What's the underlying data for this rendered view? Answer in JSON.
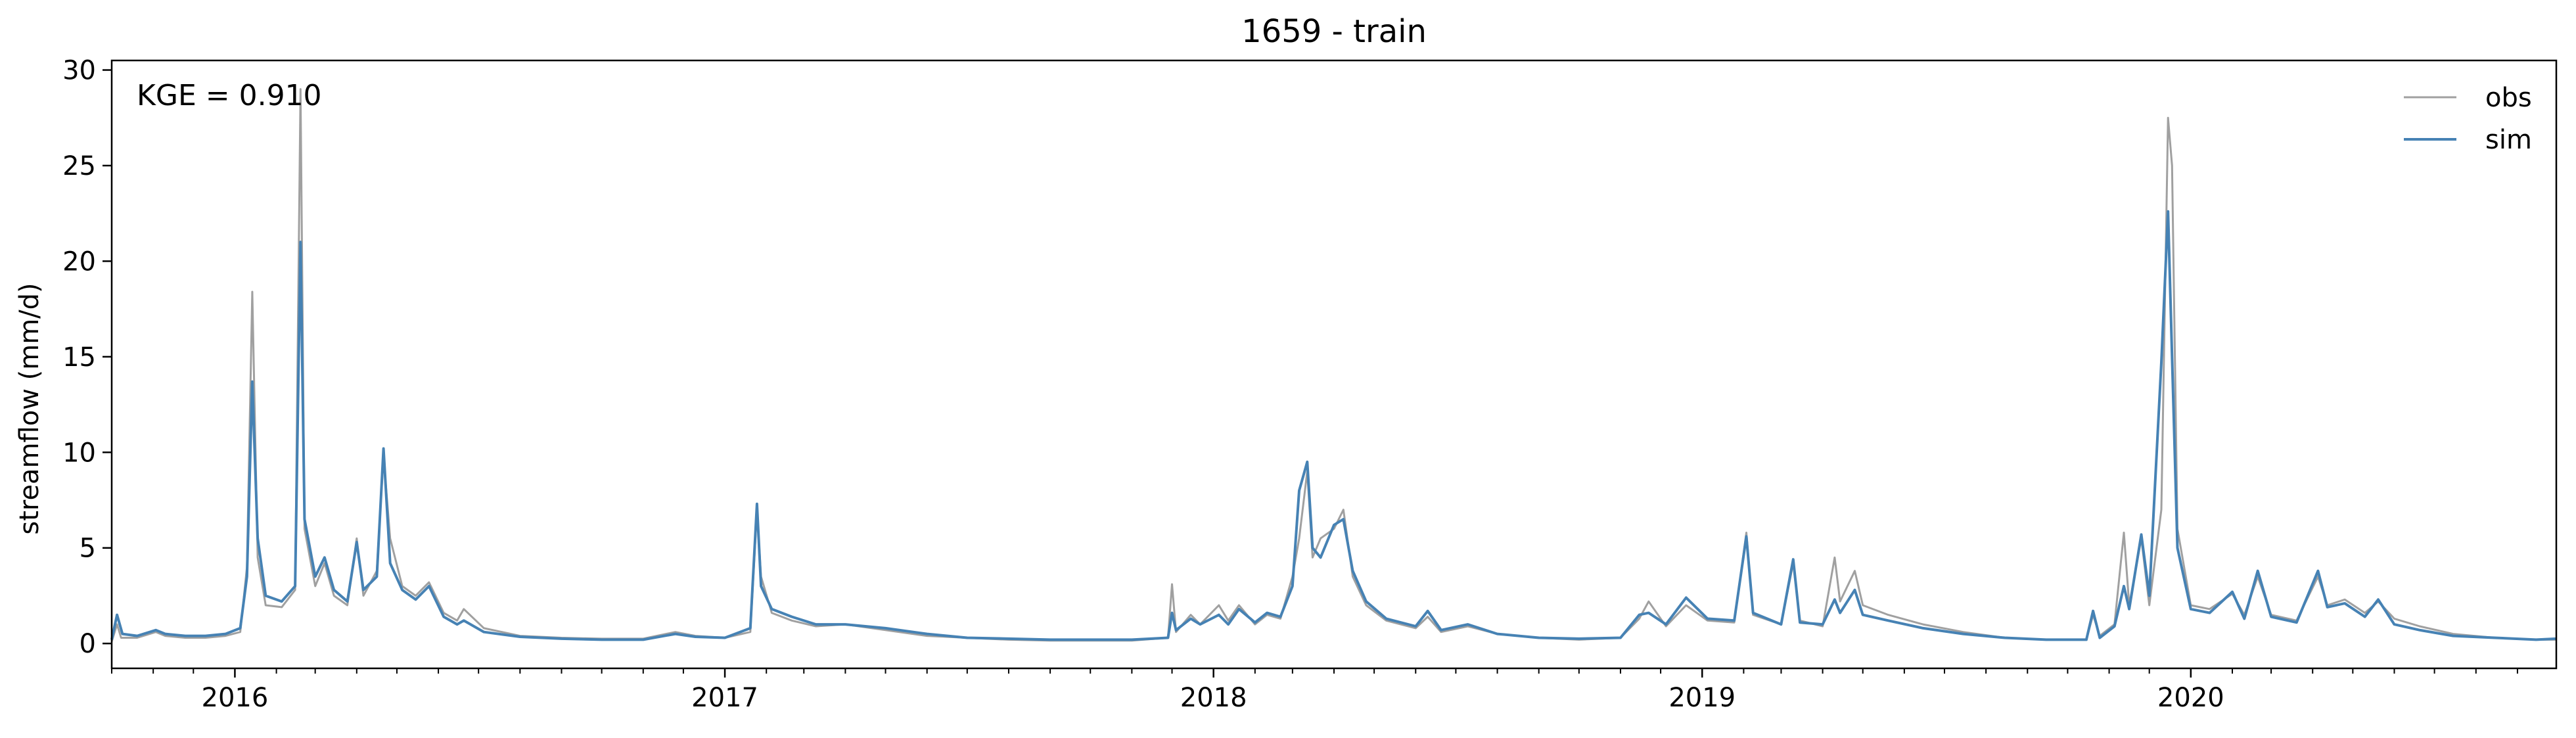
{
  "chart_data": {
    "type": "line",
    "title": "1659 - train",
    "xlabel": "",
    "ylabel": "streamflow (mm/d)",
    "annotation": "KGE = 0.910",
    "x_range": [
      "2015-10-01",
      "2020-09-30"
    ],
    "ylim": [
      -1.3,
      30.5
    ],
    "y_ticks": [
      0,
      5,
      10,
      15,
      20,
      25,
      30
    ],
    "y_tick_labels": [
      "0",
      "5",
      "10",
      "15",
      "20",
      "25",
      "30"
    ],
    "x_ticks": [
      "2016-01-01",
      "2017-01-01",
      "2018-01-01",
      "2019-01-01",
      "2020-01-01"
    ],
    "x_tick_labels": [
      "2016",
      "2017",
      "2018",
      "2019",
      "2020"
    ],
    "grid": false,
    "legend_position": "top-right",
    "series": [
      {
        "name": "obs",
        "color": "#a0a0a0",
        "points": [
          [
            "2015-10-01",
            0.1
          ],
          [
            "2015-10-05",
            1.0
          ],
          [
            "2015-10-08",
            0.3
          ],
          [
            "2015-10-20",
            0.3
          ],
          [
            "2015-11-03",
            0.6
          ],
          [
            "2015-11-10",
            0.4
          ],
          [
            "2015-11-25",
            0.3
          ],
          [
            "2015-12-10",
            0.3
          ],
          [
            "2015-12-25",
            0.4
          ],
          [
            "2016-01-05",
            0.6
          ],
          [
            "2016-01-10",
            4.0
          ],
          [
            "2016-01-14",
            18.4
          ],
          [
            "2016-01-18",
            4.5
          ],
          [
            "2016-01-24",
            2.0
          ],
          [
            "2016-02-05",
            1.9
          ],
          [
            "2016-02-15",
            2.8
          ],
          [
            "2016-02-19",
            29.0
          ],
          [
            "2016-02-22",
            6.0
          ],
          [
            "2016-03-01",
            3.0
          ],
          [
            "2016-03-08",
            4.2
          ],
          [
            "2016-03-15",
            2.5
          ],
          [
            "2016-03-25",
            2.0
          ],
          [
            "2016-04-01",
            5.5
          ],
          [
            "2016-04-06",
            2.5
          ],
          [
            "2016-04-16",
            3.8
          ],
          [
            "2016-04-21",
            9.8
          ],
          [
            "2016-04-26",
            5.5
          ],
          [
            "2016-05-05",
            3.0
          ],
          [
            "2016-05-15",
            2.5
          ],
          [
            "2016-05-25",
            3.2
          ],
          [
            "2016-06-05",
            1.6
          ],
          [
            "2016-06-15",
            1.2
          ],
          [
            "2016-06-20",
            1.8
          ],
          [
            "2016-07-05",
            0.8
          ],
          [
            "2016-08-01",
            0.4
          ],
          [
            "2016-09-01",
            0.3
          ],
          [
            "2016-10-01",
            0.25
          ],
          [
            "2016-11-01",
            0.25
          ],
          [
            "2016-11-25",
            0.6
          ],
          [
            "2016-12-10",
            0.4
          ],
          [
            "2017-01-01",
            0.3
          ],
          [
            "2017-01-20",
            0.6
          ],
          [
            "2017-01-25",
            7.0
          ],
          [
            "2017-01-28",
            3.5
          ],
          [
            "2017-02-05",
            1.6
          ],
          [
            "2017-02-20",
            1.2
          ],
          [
            "2017-03-10",
            0.9
          ],
          [
            "2017-04-01",
            1.0
          ],
          [
            "2017-05-01",
            0.7
          ],
          [
            "2017-06-01",
            0.4
          ],
          [
            "2017-07-01",
            0.3
          ],
          [
            "2017-08-01",
            0.2
          ],
          [
            "2017-09-01",
            0.15
          ],
          [
            "2017-10-01",
            0.15
          ],
          [
            "2017-11-01",
            0.15
          ],
          [
            "2017-11-28",
            0.3
          ],
          [
            "2017-12-01",
            3.1
          ],
          [
            "2017-12-04",
            0.6
          ],
          [
            "2017-12-15",
            1.5
          ],
          [
            "2017-12-22",
            1.0
          ],
          [
            "2018-01-05",
            2.0
          ],
          [
            "2018-01-12",
            1.2
          ],
          [
            "2018-01-20",
            2.0
          ],
          [
            "2018-02-01",
            1.0
          ],
          [
            "2018-02-10",
            1.5
          ],
          [
            "2018-02-20",
            1.3
          ],
          [
            "2018-03-01",
            3.5
          ],
          [
            "2018-03-06",
            5.5
          ],
          [
            "2018-03-12",
            9.0
          ],
          [
            "2018-03-16",
            4.5
          ],
          [
            "2018-03-22",
            5.5
          ],
          [
            "2018-04-01",
            6.0
          ],
          [
            "2018-04-08",
            7.0
          ],
          [
            "2018-04-15",
            3.5
          ],
          [
            "2018-04-25",
            2.0
          ],
          [
            "2018-05-10",
            1.2
          ],
          [
            "2018-06-01",
            0.8
          ],
          [
            "2018-06-10",
            1.4
          ],
          [
            "2018-06-20",
            0.6
          ],
          [
            "2018-07-10",
            0.9
          ],
          [
            "2018-08-01",
            0.5
          ],
          [
            "2018-09-01",
            0.3
          ],
          [
            "2018-10-01",
            0.2
          ],
          [
            "2018-11-01",
            0.3
          ],
          [
            "2018-11-15",
            1.3
          ],
          [
            "2018-11-22",
            2.2
          ],
          [
            "2018-12-05",
            0.9
          ],
          [
            "2018-12-20",
            2.0
          ],
          [
            "2019-01-05",
            1.2
          ],
          [
            "2019-01-25",
            1.1
          ],
          [
            "2019-02-03",
            5.8
          ],
          [
            "2019-02-08",
            1.5
          ],
          [
            "2019-03-01",
            1.0
          ],
          [
            "2019-03-10",
            4.2
          ],
          [
            "2019-03-15",
            1.2
          ],
          [
            "2019-04-01",
            0.9
          ],
          [
            "2019-04-10",
            4.5
          ],
          [
            "2019-04-14",
            2.2
          ],
          [
            "2019-04-25",
            3.8
          ],
          [
            "2019-05-01",
            2.0
          ],
          [
            "2019-05-20",
            1.5
          ],
          [
            "2019-06-15",
            1.0
          ],
          [
            "2019-07-15",
            0.6
          ],
          [
            "2019-08-15",
            0.3
          ],
          [
            "2019-09-15",
            0.2
          ],
          [
            "2019-10-15",
            0.2
          ],
          [
            "2019-10-20",
            1.5
          ],
          [
            "2019-10-25",
            0.4
          ],
          [
            "2019-11-05",
            1.0
          ],
          [
            "2019-11-12",
            5.8
          ],
          [
            "2019-11-16",
            2.0
          ],
          [
            "2019-11-25",
            5.5
          ],
          [
            "2019-12-01",
            2.0
          ],
          [
            "2019-12-10",
            7.0
          ],
          [
            "2019-12-15",
            27.5
          ],
          [
            "2019-12-18",
            25.0
          ],
          [
            "2019-12-22",
            6.0
          ],
          [
            "2020-01-01",
            2.0
          ],
          [
            "2020-01-15",
            1.8
          ],
          [
            "2020-02-01",
            2.6
          ],
          [
            "2020-02-10",
            1.5
          ],
          [
            "2020-02-20",
            3.5
          ],
          [
            "2020-03-01",
            1.5
          ],
          [
            "2020-03-20",
            1.2
          ],
          [
            "2020-04-05",
            3.5
          ],
          [
            "2020-04-12",
            2.0
          ],
          [
            "2020-04-25",
            2.3
          ],
          [
            "2020-05-10",
            1.6
          ],
          [
            "2020-05-20",
            2.2
          ],
          [
            "2020-06-01",
            1.3
          ],
          [
            "2020-06-20",
            0.9
          ],
          [
            "2020-07-15",
            0.5
          ],
          [
            "2020-08-15",
            0.3
          ],
          [
            "2020-09-15",
            0.2
          ],
          [
            "2020-09-30",
            0.2
          ]
        ]
      },
      {
        "name": "sim",
        "color": "#4682b4",
        "points": [
          [
            "2015-10-01",
            0.2
          ],
          [
            "2015-10-05",
            1.5
          ],
          [
            "2015-10-09",
            0.5
          ],
          [
            "2015-10-20",
            0.4
          ],
          [
            "2015-11-03",
            0.7
          ],
          [
            "2015-11-10",
            0.5
          ],
          [
            "2015-11-25",
            0.4
          ],
          [
            "2015-12-10",
            0.4
          ],
          [
            "2015-12-25",
            0.5
          ],
          [
            "2016-01-05",
            0.8
          ],
          [
            "2016-01-10",
            3.5
          ],
          [
            "2016-01-14",
            13.7
          ],
          [
            "2016-01-18",
            5.5
          ],
          [
            "2016-01-24",
            2.5
          ],
          [
            "2016-02-05",
            2.2
          ],
          [
            "2016-02-15",
            3.0
          ],
          [
            "2016-02-19",
            21.0
          ],
          [
            "2016-02-22",
            6.5
          ],
          [
            "2016-03-01",
            3.5
          ],
          [
            "2016-03-08",
            4.5
          ],
          [
            "2016-03-15",
            2.8
          ],
          [
            "2016-03-25",
            2.2
          ],
          [
            "2016-04-01",
            5.3
          ],
          [
            "2016-04-06",
            2.8
          ],
          [
            "2016-04-16",
            3.5
          ],
          [
            "2016-04-21",
            10.2
          ],
          [
            "2016-04-26",
            4.2
          ],
          [
            "2016-05-05",
            2.8
          ],
          [
            "2016-05-15",
            2.3
          ],
          [
            "2016-05-25",
            3.0
          ],
          [
            "2016-06-05",
            1.4
          ],
          [
            "2016-06-15",
            1.0
          ],
          [
            "2016-06-20",
            1.2
          ],
          [
            "2016-07-05",
            0.6
          ],
          [
            "2016-08-01",
            0.35
          ],
          [
            "2016-09-01",
            0.25
          ],
          [
            "2016-10-01",
            0.2
          ],
          [
            "2016-11-01",
            0.2
          ],
          [
            "2016-11-25",
            0.5
          ],
          [
            "2016-12-10",
            0.35
          ],
          [
            "2017-01-01",
            0.3
          ],
          [
            "2017-01-20",
            0.8
          ],
          [
            "2017-01-25",
            7.3
          ],
          [
            "2017-01-28",
            3.0
          ],
          [
            "2017-02-05",
            1.8
          ],
          [
            "2017-02-20",
            1.4
          ],
          [
            "2017-03-10",
            1.0
          ],
          [
            "2017-04-01",
            1.0
          ],
          [
            "2017-05-01",
            0.8
          ],
          [
            "2017-06-01",
            0.5
          ],
          [
            "2017-07-01",
            0.3
          ],
          [
            "2017-08-01",
            0.25
          ],
          [
            "2017-09-01",
            0.2
          ],
          [
            "2017-10-01",
            0.2
          ],
          [
            "2017-11-01",
            0.2
          ],
          [
            "2017-11-28",
            0.3
          ],
          [
            "2017-12-01",
            1.6
          ],
          [
            "2017-12-04",
            0.7
          ],
          [
            "2017-12-15",
            1.3
          ],
          [
            "2017-12-22",
            1.0
          ],
          [
            "2018-01-05",
            1.5
          ],
          [
            "2018-01-12",
            1.0
          ],
          [
            "2018-01-20",
            1.8
          ],
          [
            "2018-02-01",
            1.1
          ],
          [
            "2018-02-10",
            1.6
          ],
          [
            "2018-02-20",
            1.4
          ],
          [
            "2018-03-01",
            3.0
          ],
          [
            "2018-03-06",
            8.0
          ],
          [
            "2018-03-12",
            9.5
          ],
          [
            "2018-03-16",
            5.0
          ],
          [
            "2018-03-22",
            4.5
          ],
          [
            "2018-04-01",
            6.2
          ],
          [
            "2018-04-08",
            6.5
          ],
          [
            "2018-04-15",
            3.8
          ],
          [
            "2018-04-25",
            2.2
          ],
          [
            "2018-05-10",
            1.3
          ],
          [
            "2018-06-01",
            0.9
          ],
          [
            "2018-06-10",
            1.7
          ],
          [
            "2018-06-20",
            0.7
          ],
          [
            "2018-07-10",
            1.0
          ],
          [
            "2018-08-01",
            0.5
          ],
          [
            "2018-09-01",
            0.3
          ],
          [
            "2018-10-01",
            0.25
          ],
          [
            "2018-11-01",
            0.3
          ],
          [
            "2018-11-15",
            1.5
          ],
          [
            "2018-11-22",
            1.6
          ],
          [
            "2018-12-05",
            1.0
          ],
          [
            "2018-12-20",
            2.4
          ],
          [
            "2019-01-05",
            1.3
          ],
          [
            "2019-01-25",
            1.2
          ],
          [
            "2019-02-03",
            5.6
          ],
          [
            "2019-02-08",
            1.6
          ],
          [
            "2019-03-01",
            1.0
          ],
          [
            "2019-03-10",
            4.4
          ],
          [
            "2019-03-15",
            1.1
          ],
          [
            "2019-04-01",
            1.0
          ],
          [
            "2019-04-10",
            2.3
          ],
          [
            "2019-04-14",
            1.6
          ],
          [
            "2019-04-25",
            2.8
          ],
          [
            "2019-05-01",
            1.5
          ],
          [
            "2019-05-20",
            1.2
          ],
          [
            "2019-06-15",
            0.8
          ],
          [
            "2019-07-15",
            0.5
          ],
          [
            "2019-08-15",
            0.3
          ],
          [
            "2019-09-15",
            0.2
          ],
          [
            "2019-10-15",
            0.2
          ],
          [
            "2019-10-20",
            1.7
          ],
          [
            "2019-10-25",
            0.3
          ],
          [
            "2019-11-05",
            0.9
          ],
          [
            "2019-11-12",
            3.0
          ],
          [
            "2019-11-16",
            1.8
          ],
          [
            "2019-11-25",
            5.7
          ],
          [
            "2019-12-01",
            2.5
          ],
          [
            "2019-12-10",
            14.7
          ],
          [
            "2019-12-15",
            22.6
          ],
          [
            "2019-12-18",
            15.0
          ],
          [
            "2019-12-22",
            5.0
          ],
          [
            "2020-01-01",
            1.8
          ],
          [
            "2020-01-15",
            1.6
          ],
          [
            "2020-02-01",
            2.7
          ],
          [
            "2020-02-10",
            1.3
          ],
          [
            "2020-02-20",
            3.8
          ],
          [
            "2020-03-01",
            1.4
          ],
          [
            "2020-03-20",
            1.1
          ],
          [
            "2020-04-05",
            3.8
          ],
          [
            "2020-04-12",
            1.9
          ],
          [
            "2020-04-25",
            2.1
          ],
          [
            "2020-05-10",
            1.4
          ],
          [
            "2020-05-20",
            2.3
          ],
          [
            "2020-06-01",
            1.0
          ],
          [
            "2020-06-20",
            0.7
          ],
          [
            "2020-07-15",
            0.4
          ],
          [
            "2020-08-15",
            0.3
          ],
          [
            "2020-09-15",
            0.2
          ],
          [
            "2020-09-30",
            0.25
          ]
        ]
      }
    ]
  }
}
